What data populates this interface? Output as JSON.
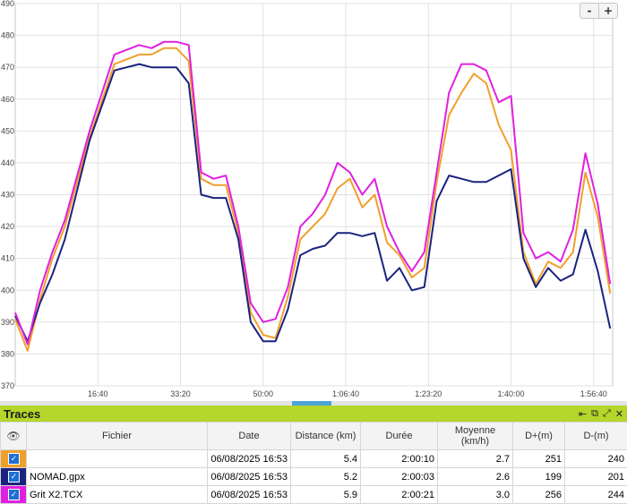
{
  "chart_data": {
    "type": "line",
    "ylim": [
      370,
      490
    ],
    "y_ticks": [
      370,
      380,
      390,
      400,
      410,
      420,
      430,
      440,
      450,
      460,
      470,
      480,
      490
    ],
    "x_ticks": [
      "16:40",
      "33:20",
      "50:00",
      "1:06:40",
      "1:23:20",
      "1:40:00",
      "1:56:40"
    ],
    "x_tick_seconds": [
      1000,
      2000,
      3000,
      4000,
      5000,
      6000,
      7000
    ],
    "xlim_seconds": [
      0,
      7230
    ],
    "grid": true,
    "series": [
      {
        "color": "#f0a02a",
        "x": [
          0,
          150,
          300,
          450,
          600,
          900,
          1200,
          1500,
          1650,
          1800,
          1950,
          2100,
          2250,
          2400,
          2550,
          2700,
          2850,
          3000,
          3150,
          3300,
          3450,
          3600,
          3750,
          3900,
          4050,
          4200,
          4350,
          4500,
          4650,
          4800,
          4950,
          5100,
          5250,
          5400,
          5550,
          5700,
          5850,
          6000,
          6150,
          6300,
          6450,
          6600,
          6750,
          6900,
          7050,
          7200
        ],
        "y": [
          391,
          381,
          397,
          410,
          420,
          448,
          471,
          474,
          474,
          476,
          476,
          472,
          435,
          433,
          433,
          418,
          393,
          386,
          385,
          398,
          416,
          420,
          424,
          432,
          435,
          426,
          430,
          415,
          411,
          404,
          407,
          434,
          455,
          462,
          468,
          465,
          452,
          444,
          412,
          402,
          409,
          407,
          412,
          437,
          423,
          399
        ]
      },
      {
        "color": "#1a237e",
        "x": [
          0,
          150,
          300,
          450,
          600,
          900,
          1200,
          1500,
          1650,
          1800,
          1950,
          2100,
          2250,
          2400,
          2550,
          2700,
          2850,
          3000,
          3150,
          3300,
          3450,
          3600,
          3750,
          3900,
          4050,
          4200,
          4350,
          4500,
          4650,
          4800,
          4950,
          5100,
          5250,
          5400,
          5550,
          5700,
          5850,
          6000,
          6150,
          6300,
          6450,
          6600,
          6750,
          6900,
          7050,
          7200
        ],
        "y": [
          392,
          384,
          396,
          405,
          416,
          447,
          469,
          471,
          470,
          470,
          470,
          465,
          430,
          429,
          429,
          416,
          390,
          384,
          384,
          394,
          411,
          413,
          414,
          418,
          418,
          417,
          418,
          403,
          407,
          400,
          401,
          428,
          436,
          435,
          434,
          434,
          436,
          438,
          410,
          401,
          407,
          403,
          405,
          419,
          406,
          388
        ]
      },
      {
        "color": "#e020e0",
        "x": [
          0,
          150,
          300,
          450,
          600,
          900,
          1200,
          1500,
          1650,
          1800,
          1950,
          2100,
          2250,
          2400,
          2550,
          2700,
          2850,
          3000,
          3150,
          3300,
          3450,
          3600,
          3750,
          3900,
          4050,
          4200,
          4350,
          4500,
          4650,
          4800,
          4950,
          5100,
          5250,
          5400,
          5550,
          5700,
          5850,
          6000,
          6150,
          6300,
          6450,
          6600,
          6750,
          6900,
          7050,
          7200
        ],
        "y": [
          393,
          383,
          400,
          412,
          422,
          450,
          474,
          477,
          476,
          478,
          478,
          477,
          437,
          435,
          436,
          420,
          396,
          390,
          391,
          401,
          420,
          424,
          430,
          440,
          437,
          430,
          435,
          420,
          412,
          406,
          412,
          437,
          462,
          471,
          471,
          469,
          459,
          461,
          418,
          410,
          412,
          409,
          419,
          443,
          427,
          402
        ]
      }
    ]
  },
  "zoom": {
    "minus": "-",
    "plus": "+"
  },
  "panel": {
    "title": "Traces",
    "icons": [
      "⇤",
      "⧉",
      "⤢",
      "✕"
    ],
    "columns": [
      "Fichier",
      "Date",
      "Distance (km)",
      "Durée",
      "Moyenne (km/h)",
      "D+(m)",
      "D-(m)"
    ],
    "rows": [
      {
        "color": "#f0a02a",
        "checked": true,
        "file": "",
        "date": "06/08/2025 16:53",
        "distance": "5.4",
        "duration": "2:00:10",
        "speed": "2.7",
        "dplus": "251",
        "dminus": "240"
      },
      {
        "color": "#1a237e",
        "checked": true,
        "file": "NOMAD.gpx",
        "date": "06/08/2025 16:53",
        "distance": "5.2",
        "duration": "2:00:03",
        "speed": "2.6",
        "dplus": "199",
        "dminus": "201"
      },
      {
        "color": "#e020e0",
        "checked": true,
        "file": "Grit X2.TCX",
        "date": "06/08/2025 16:53",
        "distance": "5.9",
        "duration": "2:00:21",
        "speed": "3.0",
        "dplus": "256",
        "dminus": "244"
      }
    ]
  }
}
